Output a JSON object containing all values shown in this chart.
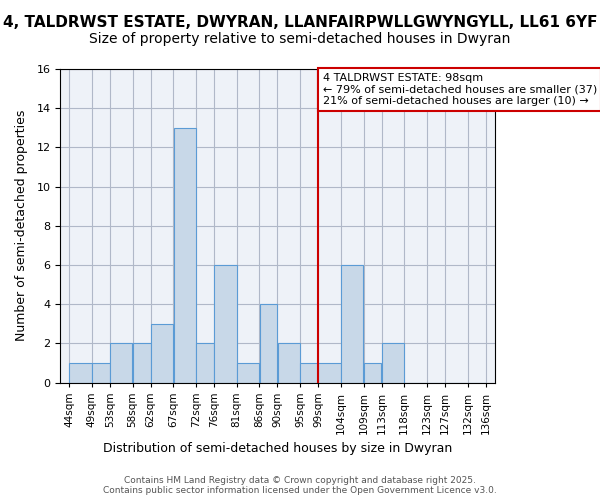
{
  "title_line1": "4, TALDRWST ESTATE, DWYRAN, LLANFAIRPWLLGWYNGYLL, LL61 6YF",
  "title_line2": "Size of property relative to semi-detached houses in Dwyran",
  "xlabel": "Distribution of semi-detached houses by size in Dwyran",
  "ylabel": "Number of semi-detached properties",
  "bin_edges": [
    44,
    49,
    53,
    58,
    62,
    67,
    72,
    76,
    81,
    86,
    90,
    95,
    99,
    104,
    109,
    113,
    118,
    123,
    127,
    132,
    136
  ],
  "bin_labels": [
    "44sqm",
    "49sqm",
    "53sqm",
    "58sqm",
    "62sqm",
    "67sqm",
    "72sqm",
    "76sqm",
    "81sqm",
    "86sqm",
    "90sqm",
    "95sqm",
    "99sqm",
    "104sqm",
    "109sqm",
    "113sqm",
    "118sqm",
    "123sqm",
    "127sqm",
    "132sqm",
    "136sqm"
  ],
  "bar_heights": [
    1,
    1,
    2,
    2,
    3,
    13,
    2,
    6,
    1,
    4,
    2,
    1,
    1,
    6,
    1,
    2,
    0,
    0,
    0,
    0
  ],
  "bar_color": "#c8d8e8",
  "bar_edge_color": "#5b9bd5",
  "vline_x": 99,
  "vline_color": "#cc0000",
  "annotation_text": "4 TALDRWST ESTATE: 98sqm\n← 79% of semi-detached houses are smaller (37)\n21% of semi-detached houses are larger (10) →",
  "annotation_box_color": "#cc0000",
  "ylim": [
    0,
    16
  ],
  "yticks": [
    0,
    2,
    4,
    6,
    8,
    10,
    12,
    14,
    16
  ],
  "grid_color": "#b0b8c8",
  "background_color": "#eef2f8",
  "footer_text": "Contains HM Land Registry data © Crown copyright and database right 2025.\nContains public sector information licensed under the Open Government Licence v3.0.",
  "title_fontsize": 11,
  "subtitle_fontsize": 10,
  "axis_label_fontsize": 9,
  "tick_fontsize": 7.5,
  "annotation_fontsize": 8
}
